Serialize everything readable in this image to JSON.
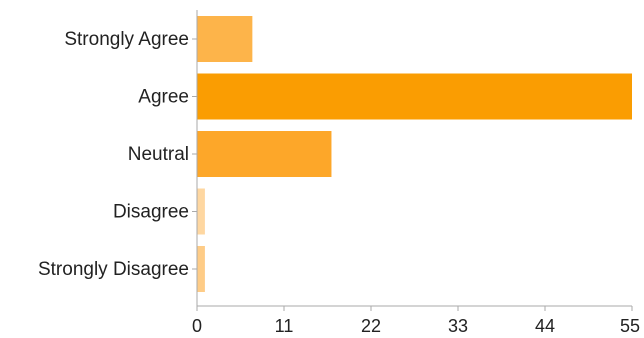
{
  "chart_data": {
    "type": "bar",
    "orientation": "horizontal",
    "title": "",
    "xlabel": "",
    "ylabel": "",
    "categories": [
      "Strongly Agree",
      "Agree",
      "Neutral",
      "Disagree",
      "Strongly Disagree"
    ],
    "values": [
      7,
      55,
      17,
      1,
      1
    ],
    "colors": [
      "#fdb44a",
      "#fa9d02",
      "#fda729",
      "#fed7a1",
      "#fecc87"
    ],
    "xlim": [
      0,
      55
    ],
    "xticks": [
      0,
      11,
      22,
      33,
      44,
      55
    ],
    "xtick_labels": [
      "0",
      "11",
      "22",
      "33",
      "44",
      "55"
    ],
    "grid": false,
    "legend": "none"
  }
}
